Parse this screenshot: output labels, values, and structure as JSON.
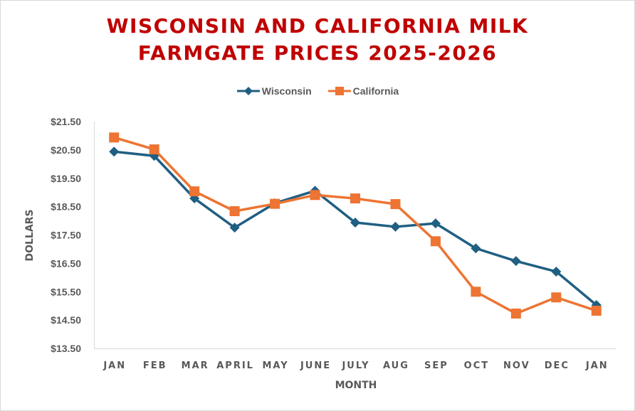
{
  "chart_data": {
    "type": "line",
    "title": "WISCONSIN AND CALIFORNIA MILK FARMGATE PRICES 2025-2026",
    "title_lines": [
      "WISCONSIN AND CALIFORNIA MILK",
      "FARMGATE PRICES 2025-2026"
    ],
    "xlabel": "MONTH",
    "ylabel": "DOLLARS",
    "categories": [
      "JAN",
      "FEB",
      "MAR",
      "APRIL",
      "MAY",
      "JUNE",
      "JULY",
      "AUG",
      "SEP",
      "OCT",
      "NOV",
      "DEC",
      "JAN"
    ],
    "ylim": [
      13.5,
      21.5
    ],
    "yticks": [
      13.5,
      14.5,
      15.5,
      16.5,
      17.5,
      18.5,
      19.5,
      20.5,
      21.5
    ],
    "ytick_labels": [
      "$13.50",
      "$14.50",
      "$15.50",
      "$16.50",
      "$17.50",
      "$18.50",
      "$19.50",
      "$20.50",
      "$21.50"
    ],
    "grid": false,
    "legend_position": "top",
    "series": [
      {
        "name": "Wisconsin",
        "color": "#1f5f82",
        "marker": "diamond",
        "values": [
          20.44,
          20.29,
          18.79,
          17.76,
          18.62,
          19.06,
          17.94,
          17.79,
          17.91,
          17.03,
          16.58,
          16.21,
          15.03
        ]
      },
      {
        "name": "California",
        "color": "#ed7432",
        "marker": "square",
        "values": [
          20.94,
          20.52,
          19.04,
          18.34,
          18.6,
          18.91,
          18.79,
          18.59,
          17.28,
          15.5,
          14.73,
          15.3,
          14.83
        ]
      }
    ]
  }
}
